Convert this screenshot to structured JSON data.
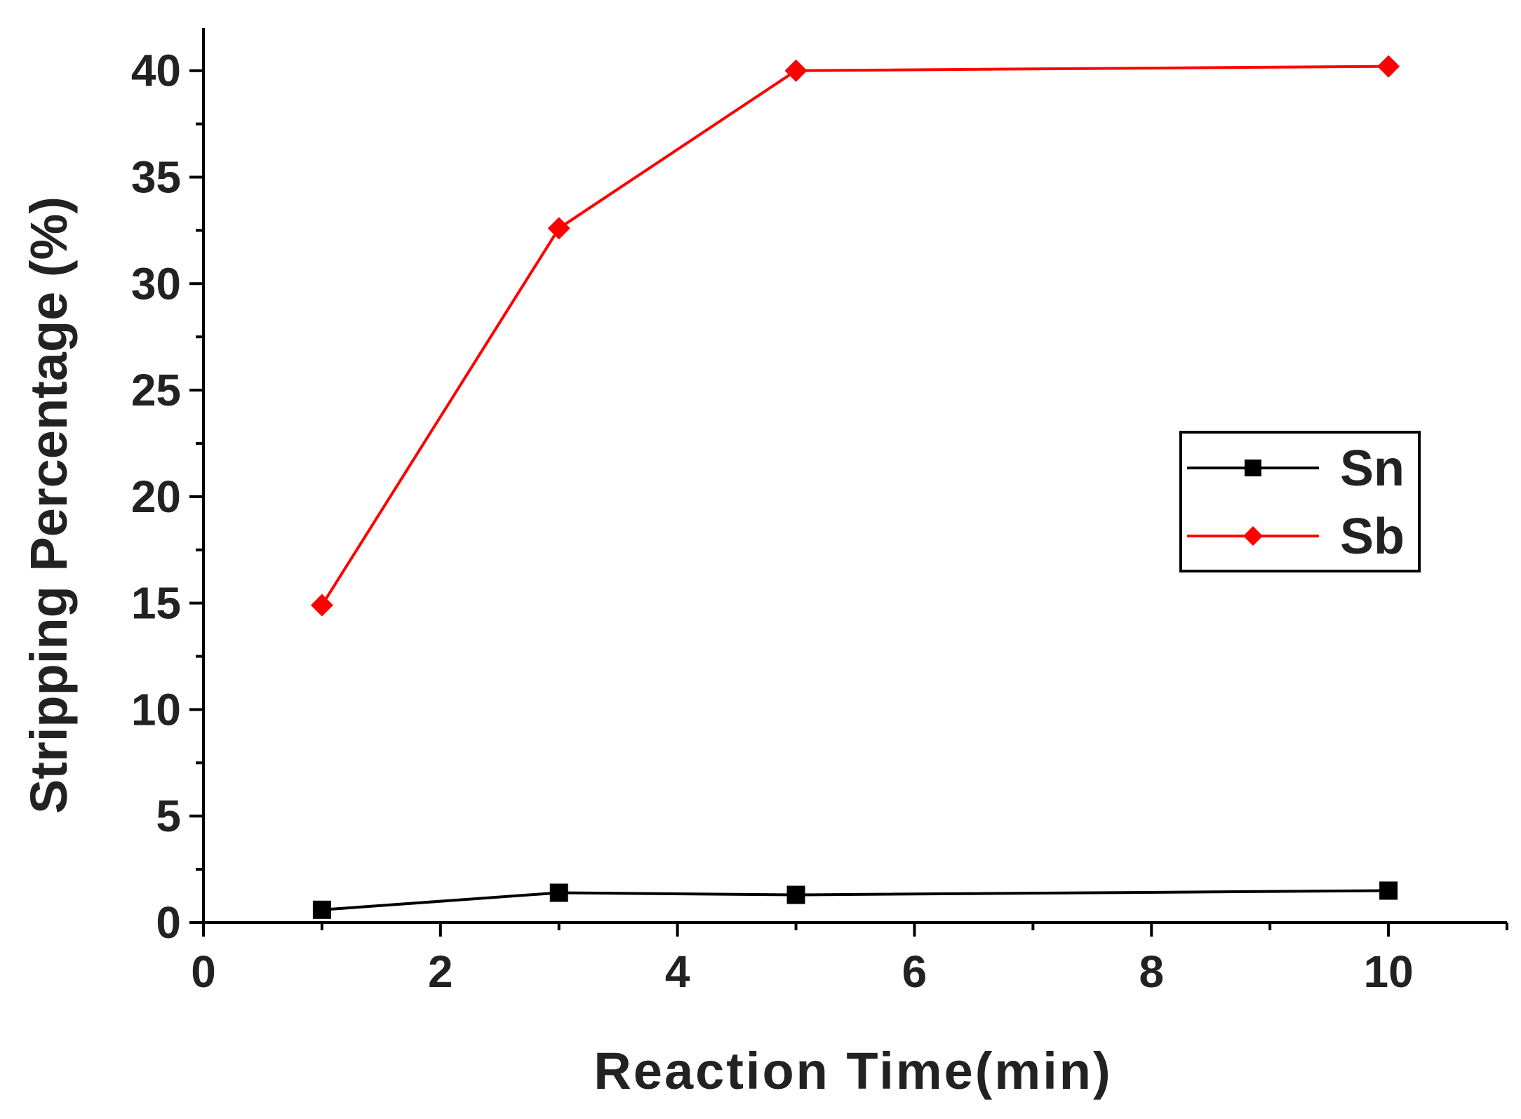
{
  "chart_data": {
    "type": "line",
    "xlabel": "Reaction Time(min)",
    "ylabel": "Stripping Percentage (%)",
    "xlim": [
      0,
      11
    ],
    "ylim": [
      0,
      42
    ],
    "x_ticks": [
      0,
      2,
      4,
      6,
      8,
      10
    ],
    "y_ticks": [
      0,
      5,
      10,
      15,
      20,
      25,
      30,
      35,
      40
    ],
    "x_tick_labels": [
      "0",
      "2",
      "4",
      "6",
      "8",
      "10"
    ],
    "y_tick_labels": [
      "0",
      "5",
      "10",
      "15",
      "20",
      "25",
      "30",
      "35",
      "40"
    ],
    "grid": false,
    "legend_position": "right",
    "series": [
      {
        "name": "Sn",
        "color": "#000000",
        "marker": "square",
        "x": [
          1,
          3,
          5,
          10
        ],
        "y": [
          0.6,
          1.4,
          1.3,
          1.5
        ]
      },
      {
        "name": "Sb",
        "color": "#ff0000",
        "marker": "diamond",
        "x": [
          1,
          3,
          5,
          10
        ],
        "y": [
          14.9,
          32.6,
          40.0,
          40.2
        ]
      }
    ]
  }
}
